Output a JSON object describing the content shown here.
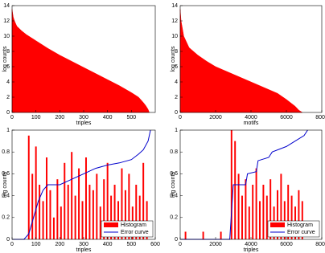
{
  "chart_data": [
    {
      "type": "area",
      "color": "#ff0000",
      "ylabel": "log counts",
      "xlabel": "triples",
      "x": [
        0,
        5,
        10,
        20,
        40,
        60,
        80,
        100,
        150,
        200,
        250,
        300,
        350,
        400,
        450,
        500,
        530,
        550,
        560,
        570,
        575
      ],
      "values": [
        13.5,
        12.5,
        12,
        11.3,
        10.7,
        10.2,
        9.8,
        9.4,
        8.4,
        7.5,
        6.7,
        5.9,
        5.1,
        4.3,
        3.5,
        2.6,
        2,
        1.3,
        0.9,
        0.4,
        0
      ],
      "xlim": [
        0,
        600
      ],
      "ylim": [
        0,
        14
      ],
      "xticks": [
        0,
        100,
        200,
        300,
        400,
        500
      ],
      "yticks": [
        0,
        2,
        4,
        6,
        8,
        10,
        12,
        14
      ]
    },
    {
      "type": "area",
      "color": "#ff0000",
      "ylabel": "log counts",
      "xlabel": "motifs",
      "x": [
        0,
        50,
        200,
        500,
        1000,
        1500,
        2000,
        3000,
        4000,
        5000,
        5500,
        6000,
        6500,
        6700,
        6900
      ],
      "values": [
        13.5,
        12,
        10,
        8.5,
        7.5,
        6.7,
        6,
        5,
        4,
        3,
        2.5,
        1.7,
        0.8,
        0.3,
        0
      ],
      "xlim": [
        0,
        8000
      ],
      "ylim": [
        0,
        14
      ],
      "xticks": [
        0,
        2000,
        4000,
        6000,
        8000
      ],
      "yticks": [
        0,
        2,
        4,
        6,
        8,
        10,
        12,
        14
      ]
    },
    {
      "type": "combo",
      "ylabel": "log counts",
      "xlabel": "triples",
      "legend": "lower right",
      "xlim": [
        0,
        600
      ],
      "ylim": [
        0,
        1
      ],
      "xticks": [
        0,
        100,
        200,
        300,
        400,
        500,
        600
      ],
      "yticks": [
        0,
        0.2,
        0.4,
        0.6,
        0.8,
        1
      ],
      "series": [
        {
          "name": "Histogram",
          "color": "#ff0000",
          "kind": "bar",
          "x": [
            70,
            85,
            100,
            115,
            130,
            145,
            160,
            175,
            190,
            205,
            220,
            235,
            250,
            265,
            280,
            295,
            310,
            325,
            340,
            355,
            370,
            385,
            400,
            415,
            430,
            445,
            460,
            475,
            490,
            505,
            520,
            535,
            550,
            565
          ],
          "values": [
            0.95,
            0.6,
            0.85,
            0.5,
            0.35,
            0.75,
            0.45,
            0.2,
            0.55,
            0.3,
            0.7,
            0.5,
            0.8,
            0.4,
            0.65,
            0.35,
            0.75,
            0.5,
            0.45,
            0.6,
            0.3,
            0.55,
            0.7,
            0.4,
            0.5,
            0.35,
            0.65,
            0.45,
            0.6,
            0.3,
            0.5,
            0.4,
            0.7,
            0.35
          ]
        },
        {
          "name": "Error curve",
          "color": "#0000cc",
          "kind": "line",
          "x": [
            0,
            50,
            70,
            90,
            110,
            130,
            150,
            200,
            250,
            300,
            350,
            400,
            450,
            500,
            530,
            550,
            570,
            580
          ],
          "values": [
            0,
            0,
            0.05,
            0.2,
            0.35,
            0.45,
            0.5,
            0.5,
            0.55,
            0.6,
            0.65,
            0.68,
            0.7,
            0.73,
            0.78,
            0.82,
            0.9,
            1
          ]
        }
      ]
    },
    {
      "type": "combo",
      "ylabel": "log counts",
      "xlabel": "triples",
      "legend": "lower right",
      "xlim": [
        0,
        8000
      ],
      "ylim": [
        0,
        1
      ],
      "xticks": [
        0,
        2000,
        4000,
        6000,
        8000
      ],
      "yticks": [
        0,
        0.2,
        0.4,
        0.6,
        0.8,
        1
      ],
      "series": [
        {
          "name": "Histogram",
          "color": "#ff0000",
          "kind": "bar",
          "x": [
            300,
            1300,
            2300,
            2900,
            3100,
            3300,
            3500,
            3700,
            3900,
            4100,
            4300,
            4500,
            4700,
            4900,
            5100,
            5300,
            5500,
            5700,
            5900,
            6100,
            6300,
            6500,
            6700,
            6900
          ],
          "values": [
            0.07,
            0.07,
            0.07,
            1,
            0.9,
            0.6,
            0.4,
            0.55,
            0.3,
            0.5,
            0.65,
            0.35,
            0.5,
            0.4,
            0.55,
            0.3,
            0.45,
            0.6,
            0.35,
            0.5,
            0.4,
            0.3,
            0.45,
            0.35
          ]
        },
        {
          "name": "Error curve",
          "color": "#0000cc",
          "kind": "line",
          "x": [
            0,
            2800,
            3000,
            3700,
            3800,
            4300,
            4400,
            5000,
            5200,
            6000,
            6500,
            7000,
            7200
          ],
          "values": [
            0,
            0,
            0.5,
            0.5,
            0.6,
            0.62,
            0.72,
            0.75,
            0.8,
            0.85,
            0.9,
            0.95,
            1
          ]
        }
      ]
    }
  ]
}
